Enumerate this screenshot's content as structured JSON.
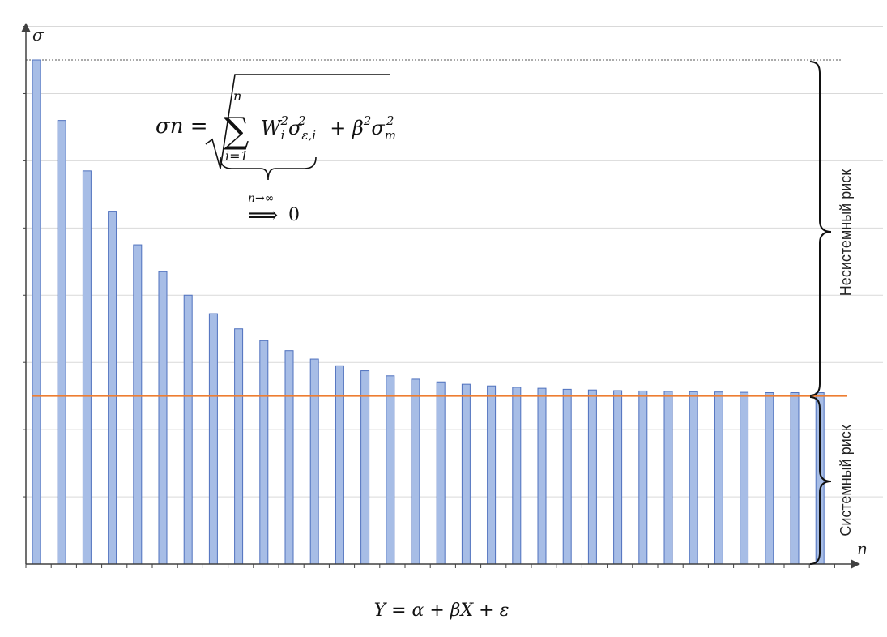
{
  "chart_data": {
    "type": "bar",
    "ylabel": "σ",
    "xlabel": "n",
    "ylim": [
      0,
      15
    ],
    "values": [
      15.0,
      13.2,
      11.7,
      10.5,
      9.5,
      8.7,
      8.0,
      7.45,
      7.0,
      6.65,
      6.35,
      6.1,
      5.9,
      5.75,
      5.6,
      5.5,
      5.42,
      5.35,
      5.3,
      5.26,
      5.23,
      5.2,
      5.18,
      5.16,
      5.15,
      5.14,
      5.13,
      5.12,
      5.11,
      5.1,
      5.1,
      5.1
    ],
    "systematic_level": 5.0,
    "grid": true,
    "colors": {
      "bar_fill": "#a7bde6",
      "bar_stroke": "#4f71be",
      "systematic_line": "#ed7d31",
      "grid": "#d9d9d9",
      "axis": "#404040"
    },
    "annotations": {
      "formula_lhs": "σn =",
      "sum_upper": "n",
      "sum_lower": "i=1",
      "formula_body": "W_i^2 σ_ε,i^2 + β^2 σ_m^2",
      "limit_label": "n→∞",
      "limit_value": "0",
      "unsystematic_risk": "Несистемный риск",
      "systematic_risk": "Системный риск",
      "caption": "Y = α + βX + ε"
    }
  }
}
